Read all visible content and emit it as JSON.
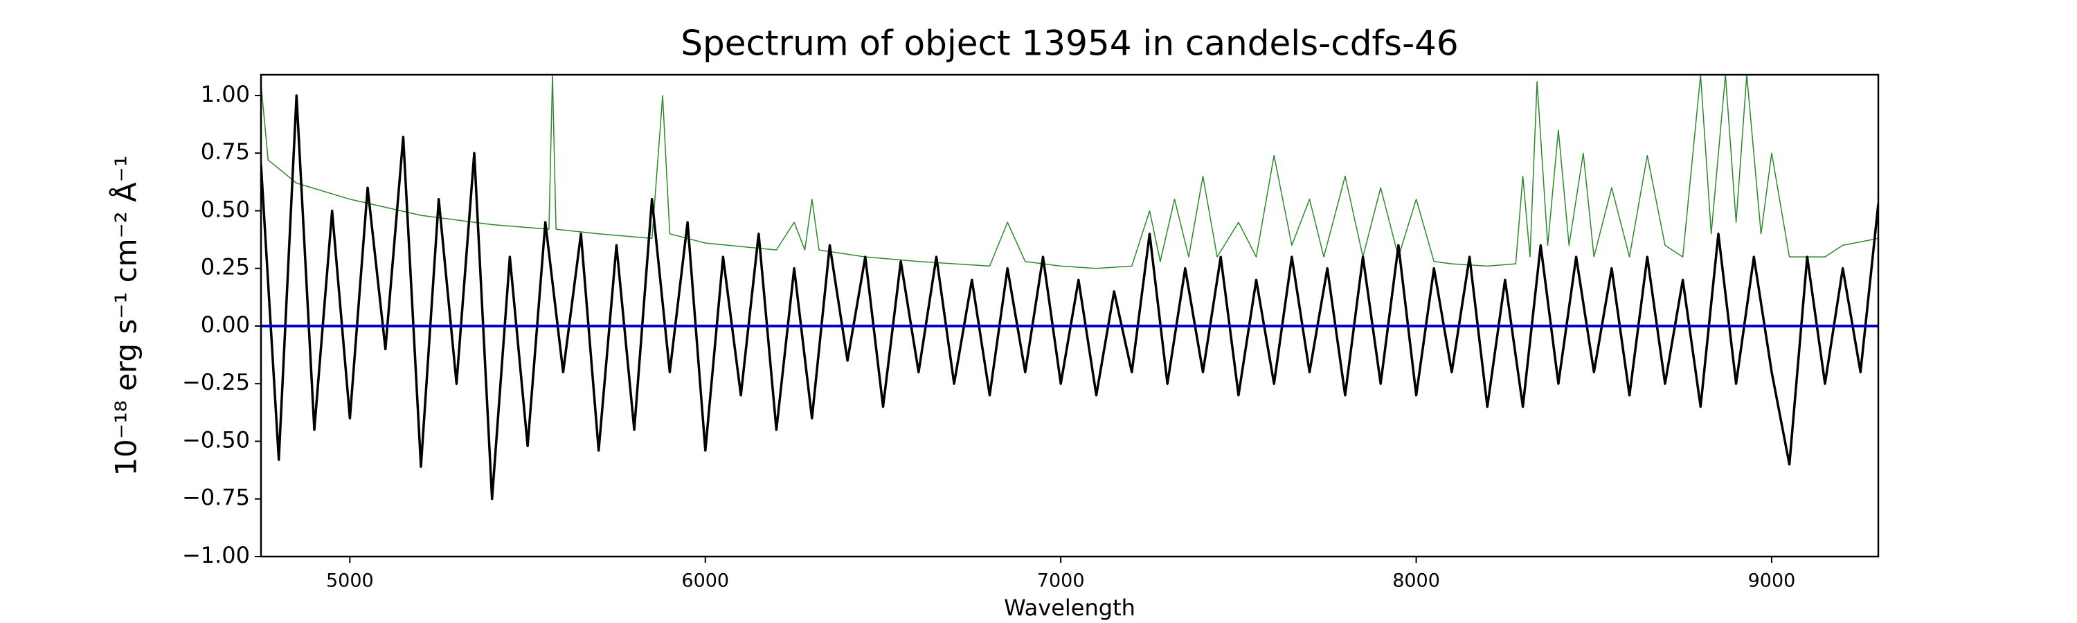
{
  "chart_data": {
    "type": "line",
    "title": "Spectrum of object 13954 in candels-cdfs-46",
    "x_label": "Wavelength",
    "y_label": "10⁻¹⁸ erg s⁻¹ cm⁻² Å⁻¹",
    "xlim": [
      4750,
      9300
    ],
    "ylim": [
      -1.0,
      1.09
    ],
    "xticks": [
      5000,
      6000,
      7000,
      8000,
      9000
    ],
    "yticks": [
      {
        "value": -1.0,
        "label": "−1.00"
      },
      {
        "value": -0.75,
        "label": "−0.75"
      },
      {
        "value": -0.5,
        "label": "−0.50"
      },
      {
        "value": -0.25,
        "label": "−0.25"
      },
      {
        "value": 0,
        "label": "0.00"
      },
      {
        "value": 0.25,
        "label": "0.25"
      },
      {
        "value": 0.5,
        "label": "0.50"
      },
      {
        "value": 0.75,
        "label": "0.75"
      },
      {
        "value": 1.0,
        "label": "1.00"
      }
    ],
    "grid": false,
    "series": [
      {
        "color": "#2a8a2a",
        "width": 1.5,
        "x": [
          4750,
          4770,
          4850,
          5000,
          5200,
          5400,
          5560,
          5570,
          5580,
          5700,
          5850,
          5880,
          5900,
          6000,
          6200,
          6250,
          6280,
          6300,
          6320,
          6450,
          6600,
          6800,
          6850,
          6900,
          7000,
          7100,
          7200,
          7250,
          7280,
          7320,
          7360,
          7400,
          7440,
          7500,
          7550,
          7600,
          7650,
          7700,
          7740,
          7800,
          7850,
          7900,
          7950,
          8000,
          8050,
          8100,
          8200,
          8280,
          8300,
          8320,
          8340,
          8370,
          8400,
          8430,
          8470,
          8500,
          8550,
          8600,
          8650,
          8700,
          8750,
          8800,
          8830,
          8870,
          8900,
          8930,
          8970,
          9000,
          9050,
          9150,
          9200,
          9300
        ],
        "values": [
          1.05,
          0.72,
          0.62,
          0.55,
          0.48,
          0.44,
          0.42,
          1.09,
          0.42,
          0.4,
          0.38,
          1.0,
          0.4,
          0.36,
          0.33,
          0.45,
          0.33,
          0.55,
          0.33,
          0.3,
          0.28,
          0.26,
          0.45,
          0.28,
          0.26,
          0.25,
          0.26,
          0.5,
          0.28,
          0.55,
          0.3,
          0.65,
          0.3,
          0.45,
          0.3,
          0.74,
          0.35,
          0.55,
          0.3,
          0.65,
          0.3,
          0.6,
          0.3,
          0.55,
          0.28,
          0.27,
          0.26,
          0.27,
          0.65,
          0.3,
          1.06,
          0.35,
          0.85,
          0.35,
          0.75,
          0.3,
          0.6,
          0.3,
          0.74,
          0.35,
          0.3,
          1.09,
          0.4,
          1.09,
          0.45,
          1.09,
          0.4,
          0.75,
          0.3,
          0.3,
          0.35,
          0.38
        ]
      },
      {
        "color": "#000000",
        "width": 3.5,
        "x": [
          4750,
          4800,
          4850,
          4900,
          4950,
          5000,
          5050,
          5100,
          5150,
          5200,
          5250,
          5300,
          5350,
          5400,
          5450,
          5500,
          5550,
          5600,
          5650,
          5700,
          5750,
          5800,
          5850,
          5900,
          5950,
          6000,
          6050,
          6100,
          6150,
          6200,
          6250,
          6300,
          6350,
          6400,
          6450,
          6500,
          6550,
          6600,
          6650,
          6700,
          6750,
          6800,
          6850,
          6900,
          6950,
          7000,
          7050,
          7100,
          7150,
          7200,
          7250,
          7300,
          7350,
          7400,
          7450,
          7500,
          7550,
          7600,
          7650,
          7700,
          7750,
          7800,
          7850,
          7900,
          7950,
          8000,
          8050,
          8100,
          8150,
          8200,
          8250,
          8300,
          8350,
          8400,
          8450,
          8500,
          8550,
          8600,
          8650,
          8700,
          8750,
          8800,
          8850,
          8900,
          8950,
          9000,
          9050,
          9100,
          9150,
          9200,
          9250,
          9300
        ],
        "values": [
          0.7,
          -0.58,
          1.0,
          -0.45,
          0.5,
          -0.4,
          0.6,
          -0.1,
          0.82,
          -0.61,
          0.55,
          -0.25,
          0.75,
          -0.75,
          0.3,
          -0.52,
          0.45,
          -0.2,
          0.4,
          -0.54,
          0.35,
          -0.45,
          0.55,
          -0.2,
          0.45,
          -0.54,
          0.3,
          -0.3,
          0.4,
          -0.45,
          0.25,
          -0.4,
          0.35,
          -0.15,
          0.3,
          -0.35,
          0.28,
          -0.2,
          0.3,
          -0.25,
          0.2,
          -0.3,
          0.25,
          -0.2,
          0.3,
          -0.25,
          0.2,
          -0.3,
          0.15,
          -0.2,
          0.4,
          -0.25,
          0.25,
          -0.2,
          0.3,
          -0.3,
          0.2,
          -0.25,
          0.3,
          -0.2,
          0.25,
          -0.3,
          0.3,
          -0.25,
          0.35,
          -0.3,
          0.25,
          -0.2,
          0.3,
          -0.35,
          0.2,
          -0.35,
          0.35,
          -0.25,
          0.3,
          -0.2,
          0.25,
          -0.3,
          0.3,
          -0.25,
          0.2,
          -0.35,
          0.4,
          -0.25,
          0.3,
          -0.2,
          -0.6,
          0.3,
          -0.25,
          0.25,
          -0.2,
          0.53
        ]
      },
      {
        "color": "#0000cc",
        "width": 4,
        "x": [
          4750,
          9300
        ],
        "values": [
          0,
          0
        ]
      }
    ]
  }
}
